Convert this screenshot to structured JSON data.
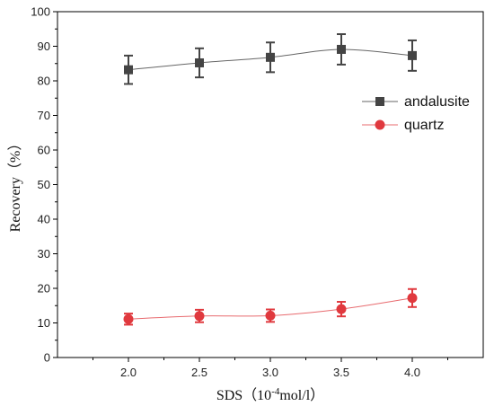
{
  "chart_data": {
    "type": "line",
    "title": "",
    "xlabel": "SDS（10⁻⁴mol/l）",
    "xlabel_parts": {
      "prefix": "SDS（10",
      "sup": "-4",
      "suffix": "mol/l）"
    },
    "ylabel": "Recovery（%）",
    "x": [
      2.0,
      2.5,
      3.0,
      3.5,
      4.0
    ],
    "x_tick_labels": [
      "2.0",
      "2.5",
      "3.0",
      "3.5",
      "4.0"
    ],
    "xlim": [
      1.5,
      4.5
    ],
    "ylim": [
      0,
      100
    ],
    "y_ticks": [
      0,
      10,
      20,
      30,
      40,
      50,
      60,
      70,
      80,
      90,
      100
    ],
    "y_tick_labels": [
      "0",
      "10",
      "20",
      "30",
      "40",
      "50",
      "60",
      "70",
      "80",
      "90",
      "100"
    ],
    "grid": false,
    "legend_position": "right",
    "series": [
      {
        "name": "andalusite",
        "marker": "square",
        "color": "#444444",
        "line_color": "#666666",
        "values": [
          83.2,
          85.2,
          86.8,
          89.1,
          87.3
        ],
        "errors": [
          4.1,
          4.2,
          4.3,
          4.4,
          4.4
        ]
      },
      {
        "name": "quartz",
        "marker": "circle",
        "color": "#e0393e",
        "line_color": "#e86b6f",
        "values": [
          11.1,
          12.0,
          12.1,
          14.0,
          17.2
        ],
        "errors": [
          1.6,
          1.8,
          1.8,
          2.1,
          2.6
        ]
      }
    ]
  }
}
